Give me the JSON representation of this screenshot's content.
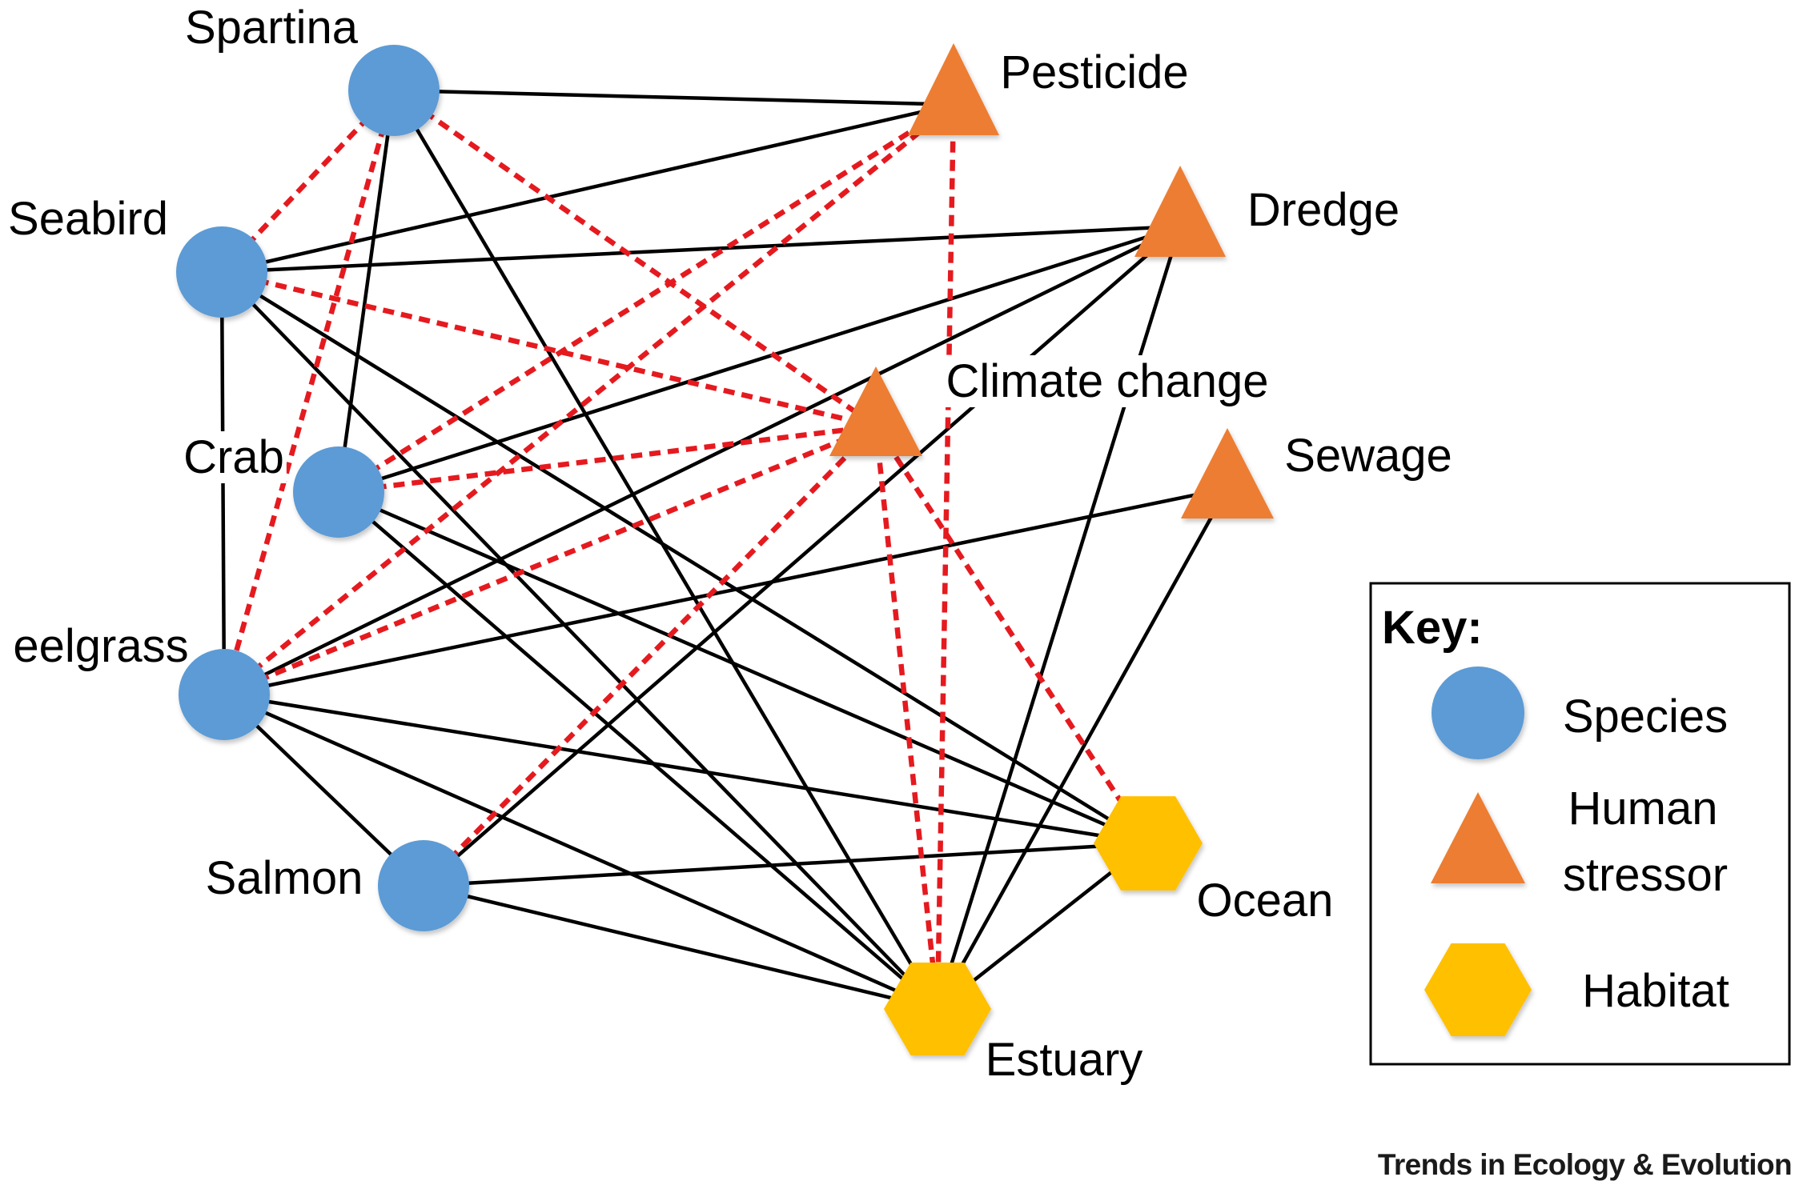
{
  "legend": {
    "title": "Key:",
    "items": [
      {
        "label_lines": [
          "Species"
        ],
        "icon": "circle-icon",
        "color": "#5b9bd5"
      },
      {
        "label_lines": [
          "Human",
          "stressor"
        ],
        "icon": "triangle-icon",
        "color": "#ed7d31"
      },
      {
        "label_lines": [
          "Habitat"
        ],
        "icon": "hexagon-icon",
        "color": "#ffc000"
      }
    ]
  },
  "diagram": {
    "nodes": [
      {
        "label": "Spartina",
        "kind": 0
      },
      {
        "label": "Seabird",
        "kind": 0
      },
      {
        "label": "Crab",
        "kind": 0
      },
      {
        "label": "eelgrass",
        "kind": 0
      },
      {
        "label": "Salmon",
        "kind": 0
      },
      {
        "label": "Pesticide",
        "kind": 1
      },
      {
        "label": "Dredge",
        "kind": 1
      },
      {
        "label": "Climate change",
        "kind": 1
      },
      {
        "label": "Sewage",
        "kind": 1
      },
      {
        "label": "Ocean",
        "kind": 2
      },
      {
        "label": "Estuary",
        "kind": 2
      }
    ],
    "edge_colors": {
      "solid": "#000000",
      "dashed": "#e51a1f"
    },
    "edges": [
      {
        "from": 0,
        "to": 5,
        "dashed": false
      },
      {
        "from": 0,
        "to": 2,
        "dashed": false
      },
      {
        "from": 0,
        "to": 10,
        "dashed": false
      },
      {
        "from": 1,
        "to": 5,
        "dashed": false
      },
      {
        "from": 1,
        "to": 6,
        "dashed": false
      },
      {
        "from": 1,
        "to": 3,
        "dashed": false
      },
      {
        "from": 1,
        "to": 9,
        "dashed": false
      },
      {
        "from": 1,
        "to": 10,
        "dashed": false
      },
      {
        "from": 2,
        "to": 6,
        "dashed": false
      },
      {
        "from": 2,
        "to": 9,
        "dashed": false
      },
      {
        "from": 2,
        "to": 10,
        "dashed": false
      },
      {
        "from": 3,
        "to": 6,
        "dashed": false
      },
      {
        "from": 3,
        "to": 8,
        "dashed": false
      },
      {
        "from": 3,
        "to": 9,
        "dashed": false
      },
      {
        "from": 3,
        "to": 10,
        "dashed": false
      },
      {
        "from": 3,
        "to": 4,
        "dashed": false
      },
      {
        "from": 4,
        "to": 6,
        "dashed": false
      },
      {
        "from": 4,
        "to": 9,
        "dashed": false
      },
      {
        "from": 4,
        "to": 10,
        "dashed": false
      },
      {
        "from": 6,
        "to": 10,
        "dashed": false
      },
      {
        "from": 8,
        "to": 10,
        "dashed": false
      },
      {
        "from": 9,
        "to": 10,
        "dashed": false
      },
      {
        "from": 0,
        "to": 1,
        "dashed": true
      },
      {
        "from": 0,
        "to": 3,
        "dashed": true
      },
      {
        "from": 0,
        "to": 7,
        "dashed": true
      },
      {
        "from": 1,
        "to": 7,
        "dashed": true
      },
      {
        "from": 2,
        "to": 5,
        "dashed": true
      },
      {
        "from": 2,
        "to": 7,
        "dashed": true
      },
      {
        "from": 3,
        "to": 5,
        "dashed": true
      },
      {
        "from": 3,
        "to": 7,
        "dashed": true
      },
      {
        "from": 4,
        "to": 7,
        "dashed": true
      },
      {
        "from": 5,
        "to": 10,
        "dashed": true
      },
      {
        "from": 7,
        "to": 10,
        "dashed": true
      },
      {
        "from": 7,
        "to": 9,
        "dashed": true
      }
    ]
  },
  "footer": {
    "credit": "Trends in Ecology & Evolution"
  }
}
